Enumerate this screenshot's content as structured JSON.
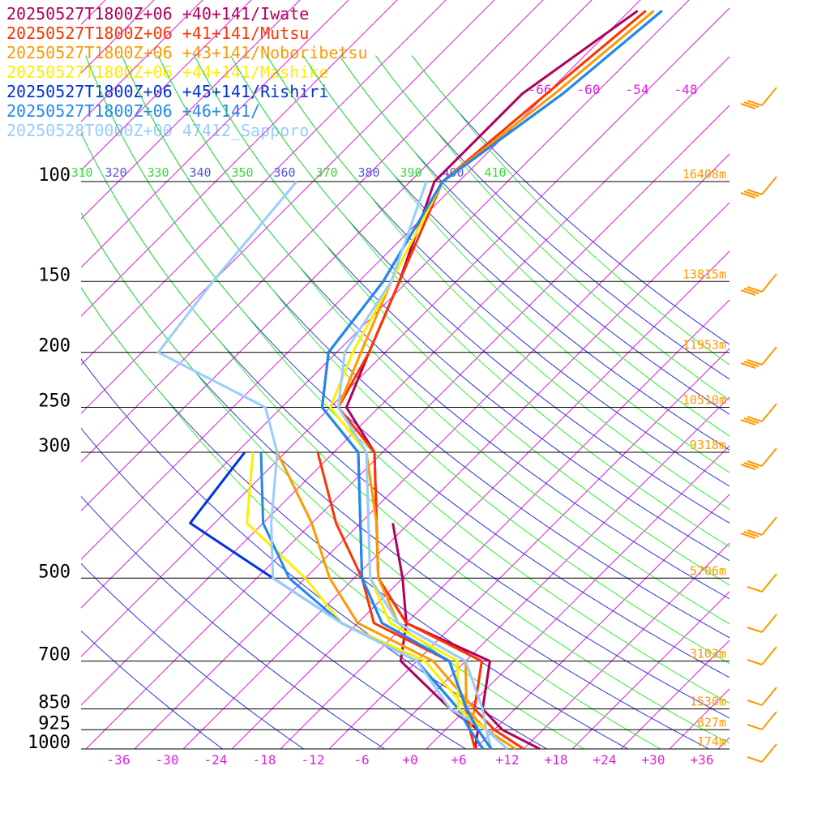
{
  "legend": [
    {
      "label": "20250527T1800Z+06 +40+141/Iwate",
      "color": "#b0005a"
    },
    {
      "label": "20250527T1800Z+06 +41+141/Mutsu",
      "color": "#ff3300"
    },
    {
      "label": "20250527T1800Z+06 +43+141/Noboribetsu",
      "color": "#ff9900"
    },
    {
      "label": "20250527T1800Z+06 +44+141/Mashike",
      "color": "#ffee00"
    },
    {
      "label": "20250527T1800Z+06 +45+141/Rishiri",
      "color": "#0033dd"
    },
    {
      "label": "20250527T1800Z+06 +46+141/",
      "color": "#2288ee"
    },
    {
      "label": "20250528T0000Z+00 47412_Sapporo",
      "color": "#99ccff"
    }
  ],
  "chart_data": {
    "type": "line",
    "title": "",
    "pressure_levels": [
      100,
      150,
      200,
      250,
      300,
      500,
      700,
      850,
      925,
      1000
    ],
    "pressure_labels": [
      "100",
      "150",
      "200",
      "250",
      "300",
      "500",
      "700",
      "850",
      "925",
      "1000"
    ],
    "height_labels": [
      "16408m",
      "13815m",
      "11953m",
      "10510m",
      "9318m",
      "5706m",
      "3103m",
      "1530m",
      "827m",
      "174m"
    ],
    "x_ticks": [
      "-36",
      "-30",
      "-24",
      "-18",
      "-12",
      "-6",
      "+0",
      "+6",
      "+12",
      "+18",
      "+24",
      "+30",
      "+36"
    ],
    "upper_temp_labels": [
      "-66",
      "-60",
      "-54",
      "-48"
    ],
    "theta_labels": [
      "310",
      "320",
      "330",
      "340",
      "350",
      "360",
      "370",
      "380",
      "390",
      "400",
      "410"
    ],
    "colors": {
      "isotherm": "#dd22dd",
      "adiabat": "#3333dd",
      "moist": "#33ee33",
      "height": "#ff9900",
      "axis": "#000000"
    },
    "series": [
      {
        "name": "20250527T1800Z+06 +40+141/Iwate",
        "color": "#b0005a",
        "points": [
          {
            "p": 1000,
            "t": 16
          },
          {
            "p": 925,
            "t": 9
          },
          {
            "p": 850,
            "t": 4
          },
          {
            "p": 700,
            "t": -1
          },
          {
            "p": 600,
            "t": -16
          },
          {
            "p": 500,
            "t": -25
          },
          {
            "p": 400,
            "t": -32
          },
          {
            "p": 300,
            "t": -41
          },
          {
            "p": 250,
            "t": -50
          },
          {
            "p": 200,
            "t": -54
          },
          {
            "p": 150,
            "t": -59
          },
          {
            "p": 100,
            "t": -67
          },
          {
            "p": 70,
            "t": -67
          },
          {
            "p": 50,
            "t": -63
          }
        ]
      },
      {
        "name": "20250527T1800Z+06 +41+141/Mutsu",
        "color": "#ff3300",
        "points": [
          {
            "p": 1000,
            "t": 14
          },
          {
            "p": 925,
            "t": 8
          },
          {
            "p": 850,
            "t": 3
          },
          {
            "p": 700,
            "t": -2
          },
          {
            "p": 600,
            "t": -16
          },
          {
            "p": 500,
            "t": -25
          },
          {
            "p": 400,
            "t": -32
          },
          {
            "p": 300,
            "t": -41
          },
          {
            "p": 250,
            "t": -51
          },
          {
            "p": 200,
            "t": -54
          },
          {
            "p": 150,
            "t": -59
          },
          {
            "p": 100,
            "t": -66
          },
          {
            "p": 70,
            "t": -64
          },
          {
            "p": 50,
            "t": -62
          }
        ]
      },
      {
        "name": "20250527T1800Z+06 +43+141/Noboribetsu",
        "color": "#ff9900",
        "points": [
          {
            "p": 1000,
            "t": 13
          },
          {
            "p": 925,
            "t": 7
          },
          {
            "p": 850,
            "t": 2
          },
          {
            "p": 700,
            "t": -4
          },
          {
            "p": 600,
            "t": -17
          },
          {
            "p": 500,
            "t": -25
          },
          {
            "p": 400,
            "t": -32
          },
          {
            "p": 300,
            "t": -42
          },
          {
            "p": 250,
            "t": -51
          },
          {
            "p": 200,
            "t": -55
          },
          {
            "p": 150,
            "t": -60
          },
          {
            "p": 100,
            "t": -66
          },
          {
            "p": 70,
            "t": -63
          },
          {
            "p": 50,
            "t": -61
          }
        ]
      },
      {
        "name": "20250527T1800Z+06 +44+141/Mashike",
        "color": "#ffee00",
        "points": [
          {
            "p": 1000,
            "t": 12
          },
          {
            "p": 925,
            "t": 7
          },
          {
            "p": 850,
            "t": 1
          },
          {
            "p": 700,
            "t": -5
          },
          {
            "p": 600,
            "t": -18
          },
          {
            "p": 500,
            "t": -26
          },
          {
            "p": 400,
            "t": -33
          },
          {
            "p": 300,
            "t": -42
          },
          {
            "p": 250,
            "t": -52
          },
          {
            "p": 200,
            "t": -56
          },
          {
            "p": 150,
            "t": -60
          },
          {
            "p": 100,
            "t": -66
          },
          {
            "p": 70,
            "t": -62
          },
          {
            "p": 50,
            "t": -60
          }
        ]
      },
      {
        "name": "20250527T1800Z+06 +45+141/Rishiri",
        "color": "#0033dd",
        "points": [
          {
            "p": 1000,
            "t": 10
          },
          {
            "p": 925,
            "t": 6
          },
          {
            "p": 850,
            "t": 2
          },
          {
            "p": 700,
            "t": -6
          },
          {
            "p": 600,
            "t": -19
          },
          {
            "p": 500,
            "t": -27
          },
          {
            "p": 400,
            "t": -34
          },
          {
            "p": 300,
            "t": -43
          },
          {
            "p": 250,
            "t": -53
          },
          {
            "p": 200,
            "t": -59
          },
          {
            "p": 150,
            "t": -61
          },
          {
            "p": 100,
            "t": -66
          },
          {
            "p": 70,
            "t": -62
          },
          {
            "p": 50,
            "t": -60
          }
        ]
      },
      {
        "name": "20250527T1800Z+06 +46+141/",
        "color": "#2288ee",
        "points": [
          {
            "p": 1000,
            "t": 10
          },
          {
            "p": 925,
            "t": 6
          },
          {
            "p": 850,
            "t": 2
          },
          {
            "p": 700,
            "t": -6
          },
          {
            "p": 600,
            "t": -19
          },
          {
            "p": 500,
            "t": -27
          },
          {
            "p": 400,
            "t": -34
          },
          {
            "p": 300,
            "t": -43
          },
          {
            "p": 250,
            "t": -53
          },
          {
            "p": 200,
            "t": -59
          },
          {
            "p": 150,
            "t": -61
          },
          {
            "p": 100,
            "t": -66
          },
          {
            "p": 70,
            "t": -62
          },
          {
            "p": 50,
            "t": -60
          }
        ]
      },
      {
        "name": "20250528T0000Z+00 47412_Sapporo",
        "color": "#99ccff",
        "points": [
          {
            "p": 1000,
            "t": 12
          },
          {
            "p": 925,
            "t": 7
          },
          {
            "p": 850,
            "t": 4
          },
          {
            "p": 700,
            "t": -4
          },
          {
            "p": 600,
            "t": -17
          },
          {
            "p": 500,
            "t": -26
          },
          {
            "p": 400,
            "t": -33
          },
          {
            "p": 300,
            "t": -42
          },
          {
            "p": 250,
            "t": -51
          },
          {
            "p": 200,
            "t": -57
          },
          {
            "p": 150,
            "t": -60
          },
          {
            "p": 100,
            "t": -68
          }
        ]
      }
    ],
    "dewpoint_series": [
      {
        "name": "20250527T1800Z+06 +40+141/Iwate",
        "color": "#b0005a",
        "points": [
          {
            "p": 1000,
            "t": 8
          },
          {
            "p": 925,
            "t": 6
          },
          {
            "p": 850,
            "t": 0
          },
          {
            "p": 700,
            "t": -12
          },
          {
            "p": 600,
            "t": -16
          },
          {
            "p": 500,
            "t": -22
          },
          {
            "p": 400,
            "t": -30
          }
        ]
      },
      {
        "name": "20250527T1800Z+06 +41+141/Mutsu",
        "color": "#ff3300",
        "points": [
          {
            "p": 1000,
            "t": 8
          },
          {
            "p": 925,
            "t": 5
          },
          {
            "p": 850,
            "t": 2
          },
          {
            "p": 700,
            "t": -6
          },
          {
            "p": 600,
            "t": -20
          },
          {
            "p": 500,
            "t": -27
          },
          {
            "p": 400,
            "t": -37
          },
          {
            "p": 300,
            "t": -48
          }
        ]
      },
      {
        "name": "20250527T1800Z+06 +43+141/Noboribetsu",
        "color": "#ff9900",
        "points": [
          {
            "p": 1000,
            "t": 9
          },
          {
            "p": 925,
            "t": 5
          },
          {
            "p": 850,
            "t": 3
          },
          {
            "p": 700,
            "t": -8
          },
          {
            "p": 600,
            "t": -22
          },
          {
            "p": 500,
            "t": -31
          },
          {
            "p": 400,
            "t": -40
          },
          {
            "p": 300,
            "t": -53
          }
        ]
      },
      {
        "name": "20250527T1800Z+06 +44+141/Mashike",
        "color": "#ffee00",
        "points": [
          {
            "p": 1000,
            "t": 10
          },
          {
            "p": 925,
            "t": 6
          },
          {
            "p": 850,
            "t": 2
          },
          {
            "p": 700,
            "t": -9
          },
          {
            "p": 600,
            "t": -24
          },
          {
            "p": 500,
            "t": -34
          },
          {
            "p": 400,
            "t": -48
          },
          {
            "p": 300,
            "t": -56
          }
        ]
      },
      {
        "name": "20250527T1800Z+06 +45+141/Rishiri",
        "color": "#0033dd",
        "points": [
          {
            "p": 1000,
            "t": 9
          },
          {
            "p": 925,
            "t": 5
          },
          {
            "p": 850,
            "t": 1
          },
          {
            "p": 700,
            "t": -10
          },
          {
            "p": 600,
            "t": -24
          },
          {
            "p": 500,
            "t": -38
          },
          {
            "p": 400,
            "t": -55
          },
          {
            "p": 300,
            "t": -57
          }
        ]
      },
      {
        "name": "20250527T1800Z+06 +46+141/",
        "color": "#2288ee",
        "points": [
          {
            "p": 1000,
            "t": 9
          },
          {
            "p": 925,
            "t": 5
          },
          {
            "p": 850,
            "t": 1
          },
          {
            "p": 700,
            "t": -10
          },
          {
            "p": 600,
            "t": -24
          },
          {
            "p": 500,
            "t": -36
          },
          {
            "p": 400,
            "t": -46
          },
          {
            "p": 300,
            "t": -55
          }
        ]
      },
      {
        "name": "20250528T0000Z+00 47412_Sapporo",
        "color": "#99ccff",
        "points": [
          {
            "p": 1000,
            "t": 10
          },
          {
            "p": 925,
            "t": 7
          },
          {
            "p": 850,
            "t": 0
          },
          {
            "p": 700,
            "t": -10
          },
          {
            "p": 600,
            "t": -24
          },
          {
            "p": 500,
            "t": -38
          },
          {
            "p": 400,
            "t": -45
          },
          {
            "p": 300,
            "t": -53
          },
          {
            "p": 250,
            "t": -60
          },
          {
            "p": 200,
            "t": -80
          },
          {
            "p": 150,
            "t": -82
          },
          {
            "p": 100,
            "t": -84
          }
        ]
      }
    ],
    "ylim": [
      100,
      1000
    ],
    "xlim": [
      -40,
      40
    ],
    "y_scale": "log-pressure",
    "grid": true,
    "legend_position": "top-left"
  }
}
